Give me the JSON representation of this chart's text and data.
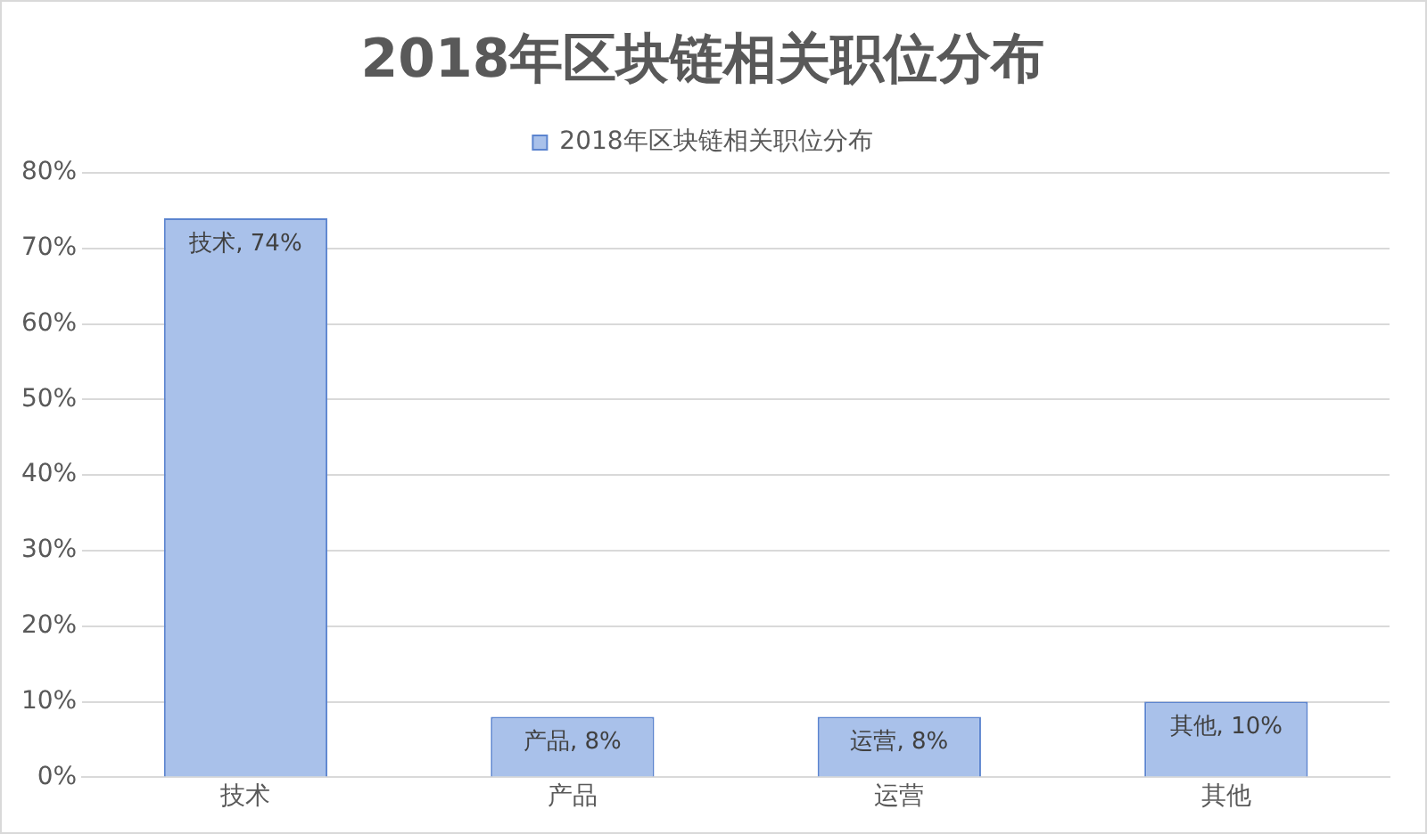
{
  "chart_data": {
    "type": "bar",
    "title": "2018年区块链相关职位分布",
    "categories": [
      "技术",
      "产品",
      "运营",
      "其他"
    ],
    "series": [
      {
        "name": "2018年区块链相关职位分布",
        "color": "#a9c1ea",
        "values": [
          74,
          8,
          8,
          10
        ],
        "value_labels": [
          "技术, 74%",
          "产品, 8%",
          "运营, 8%",
          "其他, 10%"
        ]
      }
    ],
    "ylim": [
      0,
      80
    ],
    "yticks": [
      {
        "value": 0,
        "label": "0%"
      },
      {
        "value": 10,
        "label": "10%"
      },
      {
        "value": 20,
        "label": "20%"
      },
      {
        "value": 30,
        "label": "30%"
      },
      {
        "value": 40,
        "label": "40%"
      },
      {
        "value": 50,
        "label": "50%"
      },
      {
        "value": 60,
        "label": "60%"
      },
      {
        "value": 70,
        "label": "70%"
      },
      {
        "value": 80,
        "label": "80%"
      }
    ],
    "grid": "y",
    "legend": "top"
  }
}
